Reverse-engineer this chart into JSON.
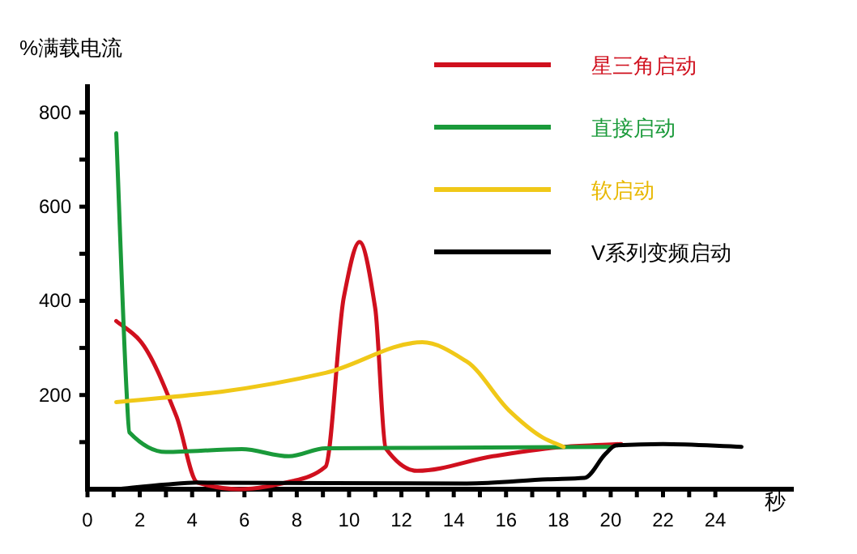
{
  "chart_data": {
    "type": "line",
    "ylabel": "%满载电流",
    "xlabel": "秒",
    "legend": "top right",
    "grid": false,
    "xlim": [
      0,
      27
    ],
    "ylim": [
      0,
      860
    ],
    "xticks": [
      0,
      {
        "value": 1,
        "label": null
      },
      2,
      {
        "value": 3,
        "label": null
      },
      4,
      {
        "value": 5,
        "label": null
      },
      6,
      {
        "value": 7,
        "label": null
      },
      8,
      {
        "value": 9,
        "label": null
      },
      10,
      {
        "value": 11,
        "label": null
      },
      12,
      {
        "value": 13,
        "label": null
      },
      14,
      {
        "value": 15,
        "label": null
      },
      16,
      {
        "value": 17,
        "label": null
      },
      18,
      {
        "value": 19,
        "label": null
      },
      20,
      {
        "value": 21,
        "label": null
      },
      22,
      {
        "value": 23,
        "label": null
      },
      24
    ],
    "yticks": [
      {
        "value": 100,
        "label": null
      },
      200,
      {
        "value": 300,
        "label": null
      },
      400,
      {
        "value": 500,
        "label": null
      },
      600,
      {
        "value": 700,
        "label": null
      },
      800
    ],
    "series": [
      {
        "name": "星三角启动",
        "color": "#d0101e",
        "x": [
          1.1,
          2,
          3.4,
          4.2,
          5.8,
          7.9,
          9.1,
          9.8,
          10.4,
          11,
          11.4,
          12.6,
          15.5,
          18.2,
          20.4
        ],
        "values": [
          357,
          316,
          155,
          14,
          0,
          18,
          48,
          408,
          525,
          384,
          87,
          39,
          70,
          90,
          96
        ]
      },
      {
        "name": "直接启动",
        "color": "#1a9a3a",
        "x": [
          1.1,
          1.5,
          1.6,
          3,
          5.9,
          7.7,
          9.1,
          14,
          20
        ],
        "values": [
          756,
          202,
          121,
          79,
          85,
          70,
          87,
          88,
          90
        ]
      },
      {
        "name": "软启动",
        "color": "#f0c818",
        "x": [
          1.1,
          5.1,
          9.1,
          12.8,
          14.5,
          16.1,
          17.4,
          18.2
        ],
        "values": [
          185,
          207,
          247,
          312,
          271,
          168,
          110,
          90
        ]
      },
      {
        "name": "V系列变频启动",
        "color": "#000000",
        "x": [
          1.1,
          3,
          4.2,
          14.5,
          17.6,
          19,
          19.8,
          20.2,
          22,
          25
        ],
        "values": [
          0,
          10,
          14,
          12,
          21,
          24,
          75,
          93,
          96,
          90
        ]
      }
    ]
  }
}
